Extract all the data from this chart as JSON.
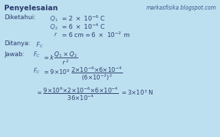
{
  "bg_color": "#bde0f0",
  "text_color": "#3a5a8c",
  "dark_color": "#2a3a6c",
  "fs_header": 7.5,
  "fs_body": 6.5,
  "fs_math": 6.2,
  "fs_wm": 5.5,
  "header": "Penyelesaian",
  "watermark": "markasfisika.blogspot.com",
  "diketahui": "Diketahui:",
  "ditanya": "Ditanya:",
  "jawab": "Jawab:"
}
